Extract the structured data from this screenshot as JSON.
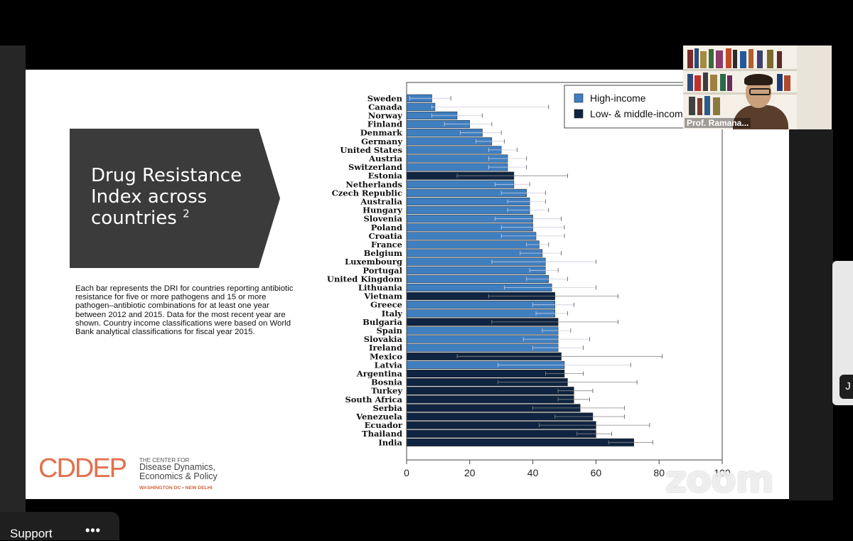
{
  "slide": {
    "title_text": "Drug Resistance Index across countries",
    "title_superscript": "2",
    "description": "Each bar represents the DRI for countries reporting antibiotic resistance for five or more pathogens and 15 or more pathogen–antibiotic combinations for at least one year between 2012 and 2015. Data for the most recent year are shown. Country income classifications were based on World Bank analytical classifications for fiscal year 2015.",
    "logo": {
      "wordmark": "CDDEP",
      "small_line": "THE CENTER FOR",
      "line1": "Disease Dynamics,",
      "line2": "Economics & Policy",
      "sub": "WASHINGTON DC • NEW DELHI"
    }
  },
  "chart_data": {
    "type": "bar",
    "orientation": "horizontal",
    "legend_position": "top-right",
    "categories": [
      "Sweden",
      "Canada",
      "Norway",
      "Finland",
      "Denmark",
      "Germany",
      "United States",
      "Austria",
      "Switzerland",
      "Estonia",
      "Netherlands",
      "Czech Republic",
      "Australia",
      "Hungary",
      "Slovenia",
      "Poland",
      "Croatia",
      "France",
      "Belgium",
      "Luxembourg",
      "Portugal",
      "United Kingdom",
      "Lithuania",
      "Vietnam",
      "Greece",
      "Italy",
      "Bulgaria",
      "Spain",
      "Slovakia",
      "Ireland",
      "Mexico",
      "Latvia",
      "Argentina",
      "Bosnia",
      "Turkey",
      "South Africa",
      "Serbia",
      "Venezuela",
      "Ecuador",
      "Thailand",
      "India"
    ],
    "values": [
      8,
      9,
      16,
      20,
      24,
      27,
      30,
      32,
      32,
      34,
      34,
      38,
      39,
      39,
      40,
      40,
      41,
      42,
      43,
      44,
      44,
      45,
      46,
      47,
      47,
      47,
      48,
      48,
      48,
      48,
      49,
      50,
      50,
      51,
      53,
      53,
      55,
      59,
      60,
      60,
      72
    ],
    "error_low": [
      1,
      8,
      8,
      12,
      17,
      22,
      26,
      26,
      26,
      16,
      28,
      30,
      32,
      32,
      28,
      30,
      30,
      38,
      36,
      27,
      39,
      38,
      31,
      26,
      40,
      41,
      27,
      43,
      37,
      40,
      16,
      29,
      44,
      29,
      48,
      48,
      40,
      47,
      42,
      54,
      64
    ],
    "error_high": [
      14,
      45,
      24,
      27,
      30,
      31,
      35,
      38,
      38,
      51,
      39,
      44,
      44,
      45,
      49,
      50,
      50,
      45,
      49,
      60,
      48,
      51,
      60,
      67,
      53,
      51,
      67,
      52,
      58,
      56,
      81,
      71,
      56,
      73,
      59,
      58,
      69,
      69,
      77,
      65,
      78
    ],
    "income_group": [
      "high",
      "high",
      "high",
      "high",
      "high",
      "high",
      "high",
      "high",
      "high",
      "low",
      "high",
      "high",
      "high",
      "high",
      "high",
      "high",
      "high",
      "high",
      "high",
      "high",
      "high",
      "high",
      "high",
      "low",
      "high",
      "high",
      "low",
      "high",
      "high",
      "high",
      "low",
      "high",
      "low",
      "low",
      "low",
      "low",
      "low",
      "low",
      "low",
      "low",
      "low"
    ],
    "xlim": [
      0,
      100
    ],
    "xticks": [
      0,
      20,
      40,
      60,
      80,
      100
    ],
    "legend": [
      "High-income",
      "Low- & middle-income"
    ],
    "colors": {
      "high": "#3f7fc0",
      "low": "#0f2440"
    }
  },
  "video": {
    "presenter_name": "Prof. Ramana..."
  },
  "watermark": "zoom",
  "side_badge": "J",
  "bottom": {
    "support_label": "Support",
    "more": "•••"
  }
}
